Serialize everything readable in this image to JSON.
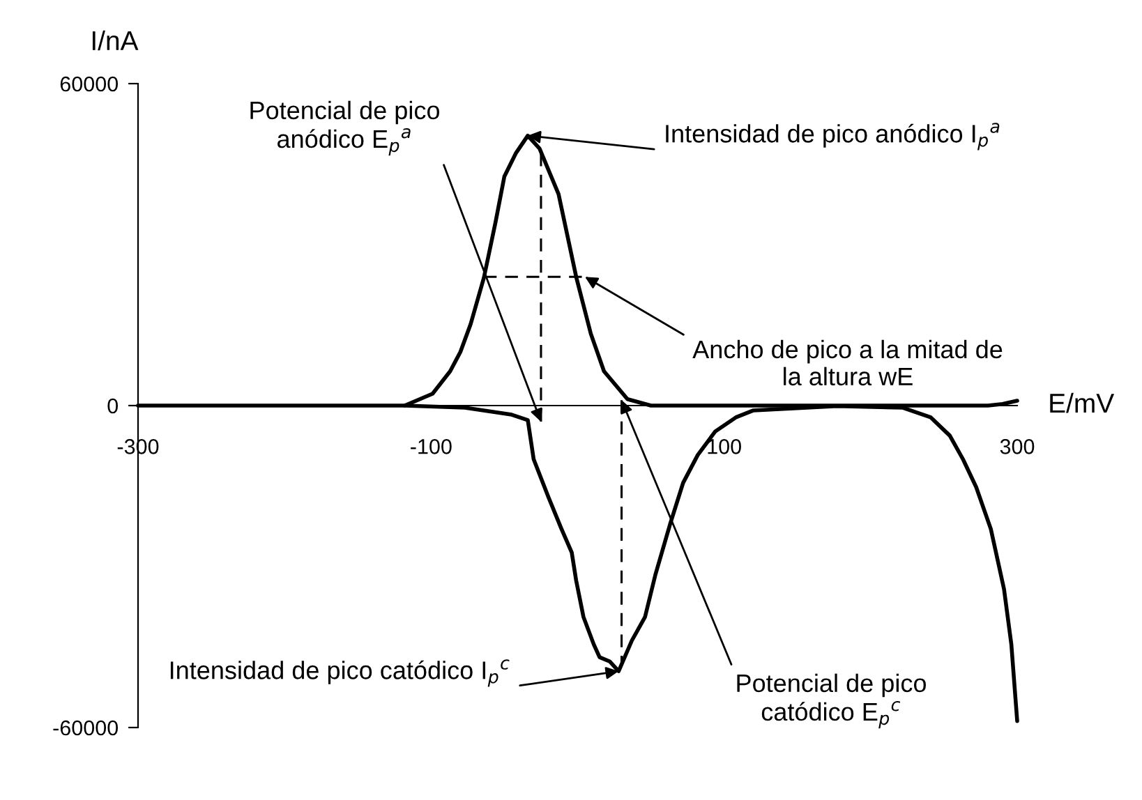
{
  "chart_data": {
    "type": "line",
    "xlabel": "E/mV",
    "ylabel": "I/nA",
    "line_style": "solid",
    "xlim": [
      -300,
      300
    ],
    "xticks": [
      -300,
      -100,
      100,
      300
    ],
    "ylim": [
      -60000,
      60000
    ],
    "yticks": [
      -60000,
      0,
      60000
    ],
    "series": [
      {
        "color": "#000000",
        "x": [
          -300,
          -200,
          -118,
          -99,
          -87,
          -80,
          -73,
          -64,
          -56,
          -50,
          -42,
          -34,
          -26,
          -13,
          -1,
          9,
          18,
          34,
          50,
          100,
          150,
          200,
          250,
          280,
          290,
          300
        ],
        "values": [
          0,
          0,
          0,
          2200,
          6400,
          10000,
          15200,
          23800,
          34200,
          42700,
          47100,
          50300,
          47900,
          39400,
          24000,
          13400,
          6400,
          1200,
          0,
          0,
          0,
          0,
          0,
          0,
          300,
          900
        ]
      },
      {
        "color": "#000000",
        "x": [
          -118,
          -77,
          -45,
          -34,
          -30,
          -20,
          -11,
          -4,
          -1,
          4,
          11,
          15,
          22,
          28,
          37,
          46,
          53,
          63,
          72,
          82,
          94,
          108,
          120,
          177,
          222,
          241,
          254,
          263,
          272,
          282,
          291,
          296,
          300
        ],
        "values": [
          0,
          -400,
          -1700,
          -2700,
          -10000,
          -17000,
          -23000,
          -27400,
          -32600,
          -39400,
          -44500,
          -46900,
          -47700,
          -49500,
          -43800,
          -39400,
          -31600,
          -22200,
          -14400,
          -9200,
          -4800,
          -2200,
          -900,
          -100,
          -400,
          -2200,
          -5600,
          -10000,
          -15200,
          -23000,
          -34200,
          -44500,
          -58800
        ]
      },
      {
        "color": "#000000",
        "line_style": "dashed",
        "x": [
          -25,
          -25
        ],
        "values": [
          -3000,
          47000
        ]
      },
      {
        "color": "#000000",
        "line_style": "dashed",
        "x": [
          -64,
          5
        ],
        "values": [
          24000,
          24000
        ]
      },
      {
        "color": "#000000",
        "line_style": "dashed",
        "x": [
          30,
          30
        ],
        "values": [
          1000,
          -48000
        ]
      }
    ],
    "annotations": [
      {
        "text": "Potencial de pico\nanódico E$_{p}$$^{a}$",
        "x": -25,
        "y": -3000
      },
      {
        "text": "Intensidad de pico anódico I$_{p}$$^{a}$",
        "x": -34,
        "y": 50300
      },
      {
        "text": "Ancho de pico a la mitad de\nla altura wE",
        "x": 5,
        "y": 24000
      },
      {
        "text": "Intensidad de pico catódico I$_{p}$$^{c}$",
        "x": 28,
        "y": -49500
      },
      {
        "text": "Potencial de pico\ncatódico E$_{p}$$^{c}$",
        "x": 30,
        "y": 1000
      }
    ]
  }
}
